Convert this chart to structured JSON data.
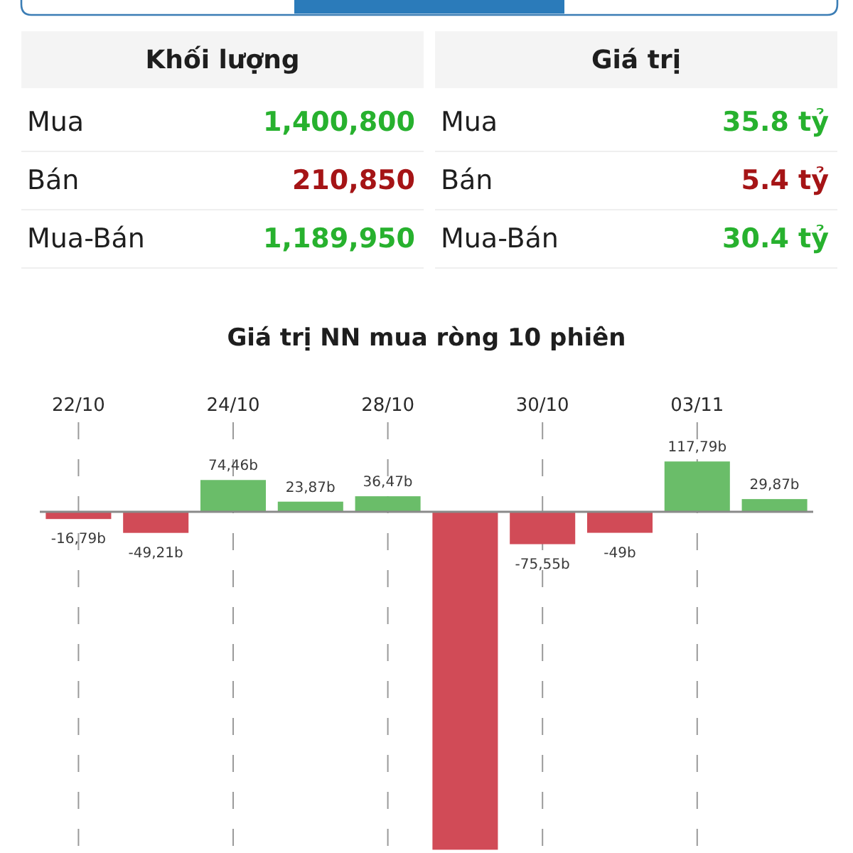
{
  "chart_data": [
    {
      "type": "other",
      "title": "Khối lượng",
      "categories": [
        "Mua",
        "Bán",
        "Mua-Bán"
      ],
      "values": [
        1400800,
        210850,
        1189950
      ],
      "value_labels": [
        "1,400,800",
        "210,850",
        "1,189,950"
      ],
      "colors": [
        "#27b12e",
        "#a51416",
        "#27b12e"
      ]
    },
    {
      "type": "other",
      "title": "Giá trị",
      "categories": [
        "Mua",
        "Bán",
        "Mua-Bán"
      ],
      "values": [
        35.8,
        5.4,
        30.4
      ],
      "value_labels": [
        "35.8 tỷ",
        "5.4 tỷ",
        "30.4 tỷ"
      ],
      "colors": [
        "#27b12e",
        "#a51416",
        "#27b12e"
      ]
    },
    {
      "type": "bar",
      "title": "Giá trị NN mua ròng 10 phiên",
      "categories": [
        "22/10",
        null,
        "24/10",
        null,
        "28/10",
        null,
        "30/10",
        null,
        "03/11",
        null
      ],
      "values": [
        -16.79,
        -49.21,
        74.46,
        23.87,
        36.47,
        -790,
        -75.55,
        -49,
        117.79,
        29.87
      ],
      "value_labels": [
        "-16,79b",
        "-49,21b",
        "74,46b",
        "23,87b",
        "36,47b",
        null,
        "-75,55b",
        "-49b",
        "117,79b",
        "29,87b"
      ],
      "colors": [
        "#d14b57",
        "#d14b57",
        "#6abd69",
        "#6abd69",
        "#6abd69",
        "#d14b57",
        "#d14b57",
        "#d14b57",
        "#6abd69",
        "#6abd69"
      ],
      "grid": "x"
    }
  ]
}
